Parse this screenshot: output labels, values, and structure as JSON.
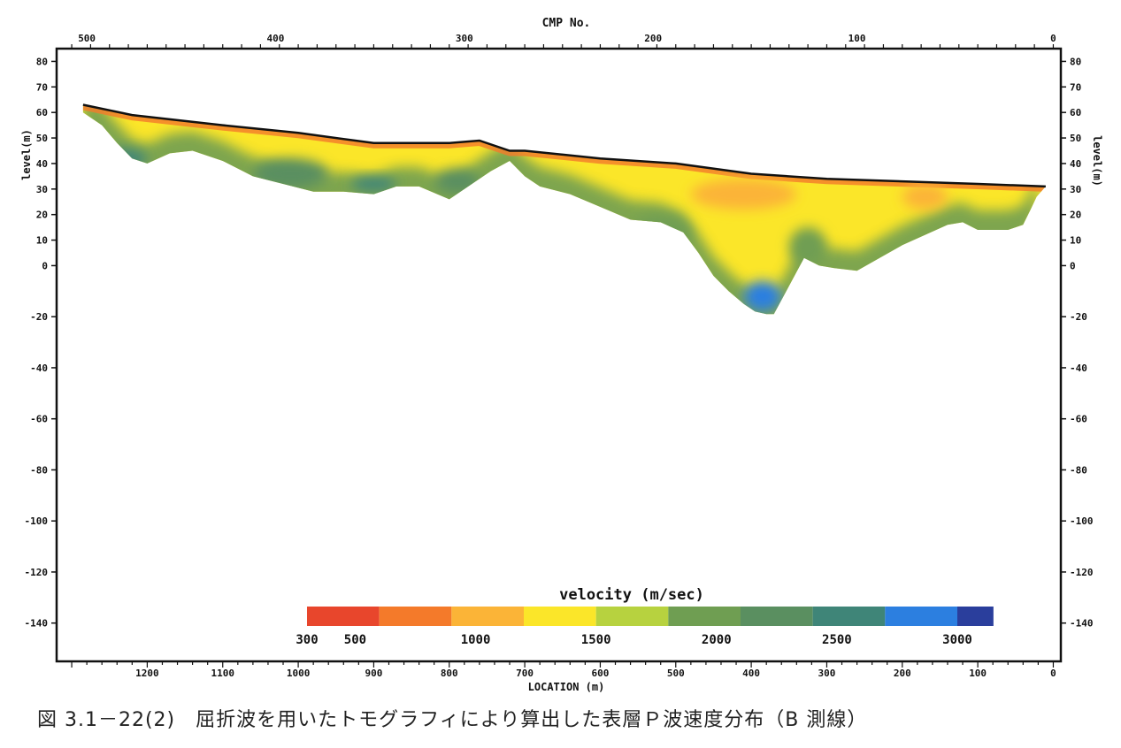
{
  "caption": "図 3.1－22(2)　屈折波を用いたトモグラフィにより算出した表層Ｐ波速度分布（B 測線）",
  "chart_data": {
    "type": "heatmap",
    "top_axis": {
      "label": "CMP No.",
      "ticks": [
        {
          "location": 1280,
          "label": "500"
        },
        {
          "location": 1030,
          "label": "400"
        },
        {
          "location": 780,
          "label": "300"
        },
        {
          "location": 530,
          "label": "200"
        },
        {
          "location": 260,
          "label": "100"
        },
        {
          "location": 0,
          "label": "0"
        }
      ]
    },
    "x_axis": {
      "label": "LOCATION (m)",
      "range": [
        1320,
        -10
      ],
      "ticks": [
        1200,
        1100,
        1000,
        900,
        800,
        700,
        600,
        500,
        400,
        300,
        200,
        100,
        0
      ]
    },
    "y_axis": {
      "label": "level(m)",
      "range": [
        -155,
        85
      ],
      "ticks_left": [
        80,
        70,
        60,
        50,
        40,
        30,
        20,
        10,
        0,
        -20,
        -40,
        -60,
        -80,
        -100,
        -120,
        -140
      ],
      "ticks_right": [
        80,
        70,
        60,
        50,
        40,
        30,
        20,
        10,
        0,
        -20,
        -40,
        -60,
        -80,
        -100,
        -120,
        -140
      ]
    },
    "surface": {
      "location": [
        1285,
        1220,
        1100,
        1000,
        900,
        800,
        760,
        720,
        700,
        600,
        500,
        400,
        300,
        200,
        100,
        10
      ],
      "level": [
        63,
        59,
        55,
        52,
        48,
        48,
        49,
        45,
        45,
        42,
        40,
        36,
        34,
        33,
        32,
        31
      ]
    },
    "bottom": {
      "location": [
        1285,
        1260,
        1240,
        1220,
        1200,
        1170,
        1140,
        1100,
        1060,
        1020,
        980,
        940,
        900,
        870,
        840,
        800,
        770,
        745,
        720,
        700,
        680,
        640,
        600,
        560,
        520,
        490,
        470,
        450,
        430,
        410,
        395,
        380,
        370,
        350,
        330,
        310,
        290,
        260,
        230,
        200,
        170,
        140,
        120,
        100,
        80,
        60,
        40,
        30,
        22
      ],
      "level": [
        60,
        55,
        48,
        42,
        40,
        44,
        45,
        41,
        35,
        32,
        29,
        29,
        28,
        31,
        31,
        26,
        32,
        37,
        41,
        35,
        31,
        28,
        23,
        18,
        17,
        13,
        5,
        -4,
        -10,
        -15,
        -18,
        -19,
        -19,
        -8,
        3,
        0,
        -1,
        -2,
        3,
        8,
        12,
        16,
        17,
        14,
        14,
        14,
        16,
        22,
        27
      ]
    },
    "velocity_zones": [
      {
        "location": [
          1270,
          1200
        ],
        "level": [
          38,
          46
        ],
        "velocity": 2700
      },
      {
        "location": [
          930,
          870
        ],
        "level": [
          29,
          35
        ],
        "velocity": 2700
      },
      {
        "location": [
          410,
          360
        ],
        "level": [
          -18,
          -6
        ],
        "velocity": 2800
      },
      {
        "location": [
          1060,
          960
        ],
        "level": [
          30,
          42
        ],
        "velocity": 2300
      },
      {
        "location": [
          820,
          760
        ],
        "level": [
          28,
          38
        ],
        "velocity": 2200
      },
      {
        "location": [
          560,
          480
        ],
        "level": [
          5,
          20
        ],
        "velocity": 2100
      },
      {
        "location": [
          350,
          300
        ],
        "level": [
          0,
          15
        ],
        "velocity": 2000
      },
      {
        "location": [
          480,
          340
        ],
        "level": [
          22,
          34
        ],
        "velocity": 1000
      },
      {
        "location": [
          200,
          140
        ],
        "level": [
          22,
          32
        ],
        "velocity": 1200
      }
    ],
    "colorbar": {
      "title": "velocity (m/sec)",
      "min": 300,
      "max": 3000,
      "tick_labels": [
        "300",
        "500",
        "1000",
        "1500",
        "2000",
        "2500",
        "3000"
      ],
      "tick_values": [
        300,
        500,
        1000,
        1500,
        2000,
        2500,
        3000
      ],
      "stops": [
        {
          "velocity": 300,
          "color": "#e8462c"
        },
        {
          "velocity": 600,
          "color": "#f47a2a"
        },
        {
          "velocity": 900,
          "color": "#fbb437"
        },
        {
          "velocity": 1200,
          "color": "#fbe629"
        },
        {
          "velocity": 1500,
          "color": "#b7d23f"
        },
        {
          "velocity": 1800,
          "color": "#6f9e52"
        },
        {
          "velocity": 2100,
          "color": "#5a8f60"
        },
        {
          "velocity": 2400,
          "color": "#3f8578"
        },
        {
          "velocity": 2700,
          "color": "#2c7fe0"
        },
        {
          "velocity": 3000,
          "color": "#2a3e9c"
        }
      ]
    }
  }
}
